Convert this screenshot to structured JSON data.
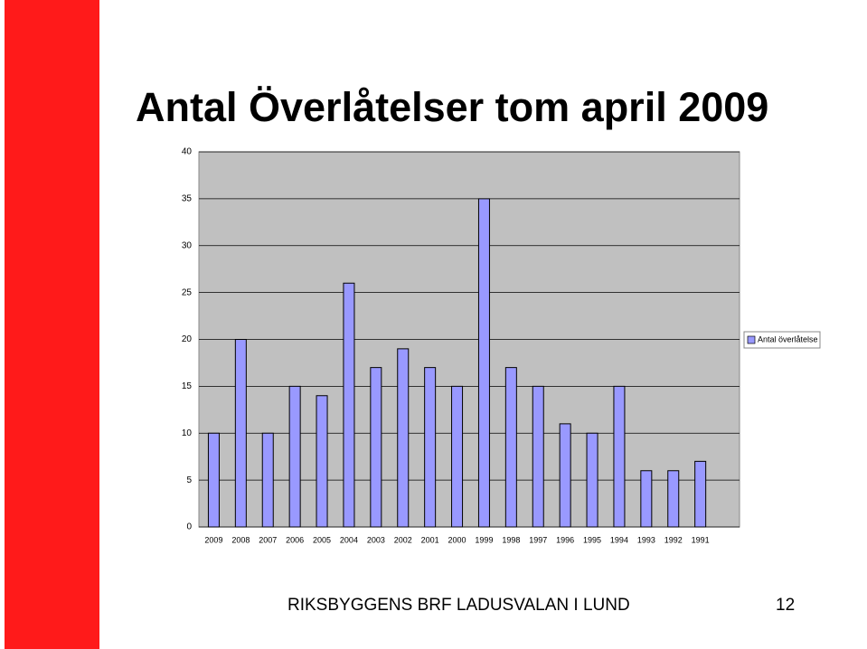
{
  "chart_data": {
    "type": "bar",
    "title": "Antal Överlåtelser tom april 2009",
    "categories": [
      "2009",
      "2008",
      "2007",
      "2006",
      "2005",
      "2004",
      "2003",
      "2002",
      "2001",
      "2000",
      "1999",
      "1998",
      "1997",
      "1996",
      "1995",
      "1994",
      "1993",
      "1992",
      "1991"
    ],
    "series": [
      {
        "name": "Antal överlåtelse",
        "color": "#9999ff",
        "values": [
          10,
          20,
          10,
          15,
          14,
          26,
          17,
          19,
          17,
          15,
          35,
          17,
          15,
          11,
          10,
          15,
          6,
          6,
          7
        ]
      }
    ],
    "ylim": [
      0,
      40
    ],
    "yticks": [
      0,
      5,
      10,
      15,
      20,
      25,
      30,
      35,
      40
    ],
    "grid": true,
    "legend": "right"
  },
  "footer": {
    "text": "RIKSBYGGENS BRF LADUSVALAN I LUND",
    "page": "12"
  }
}
